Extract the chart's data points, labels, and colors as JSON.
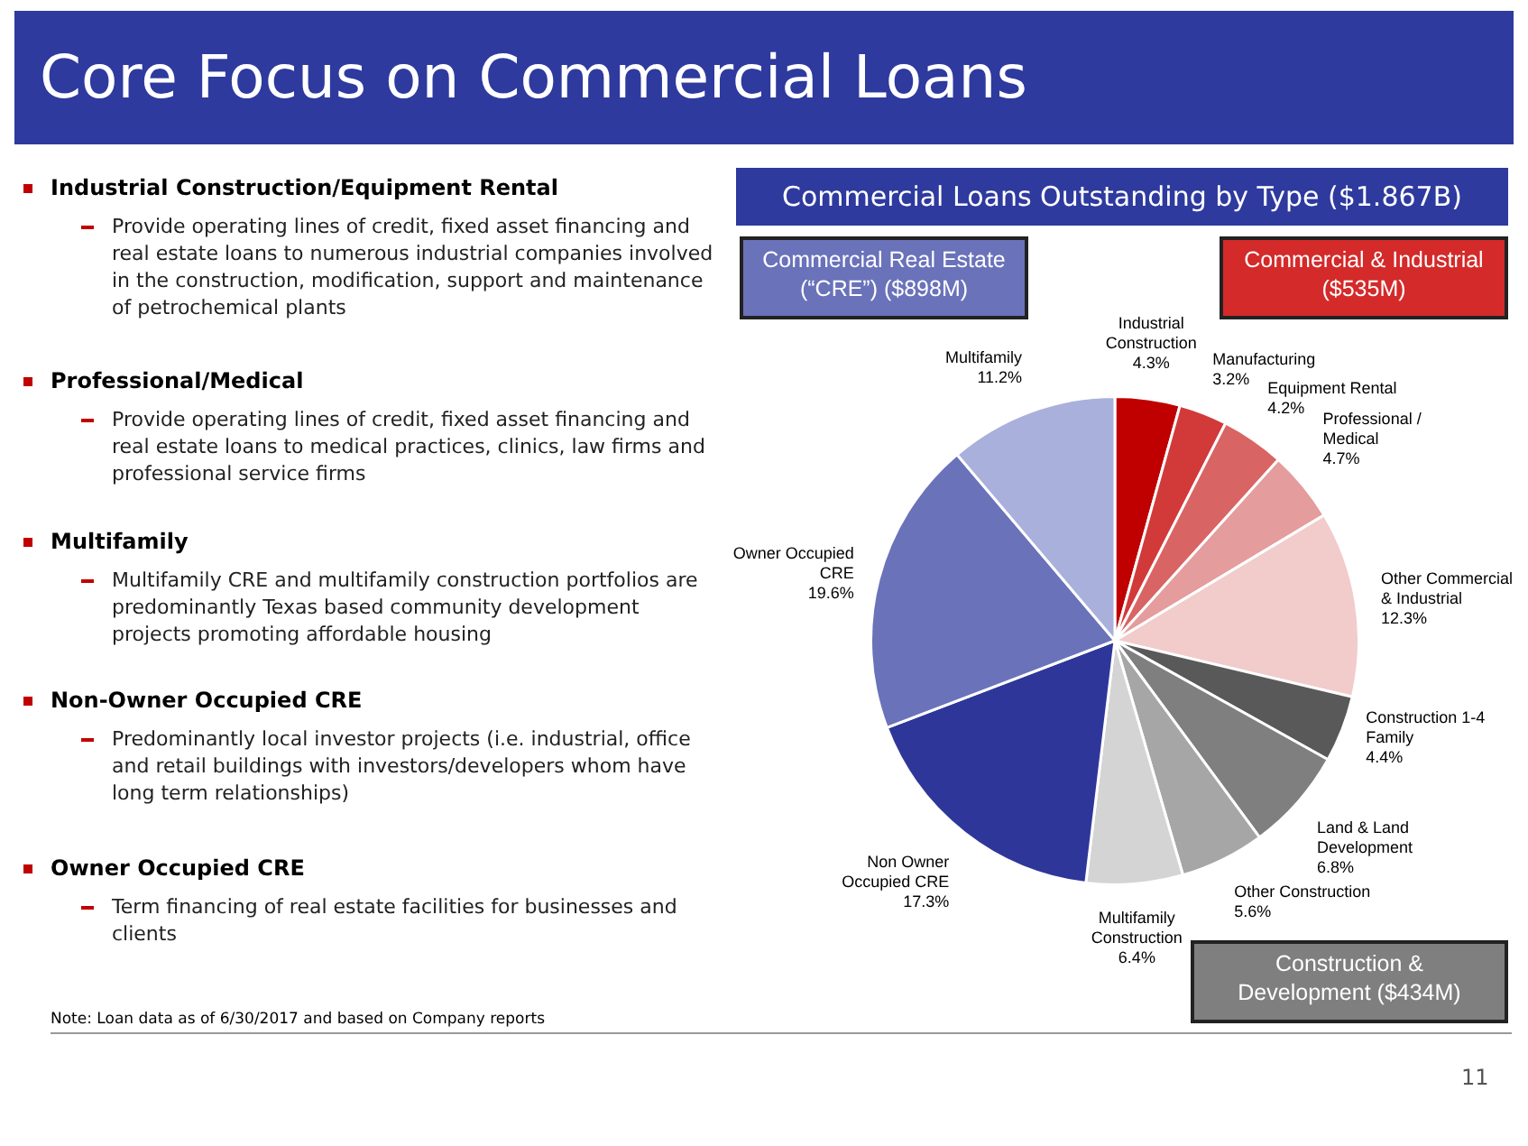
{
  "chart_data": {
    "type": "pie",
    "title": "Core Focus on Commercial Loans",
    "subtitle": "Commercial Loans Outstanding by Type ($1.867B)",
    "categories": [
      "Industrial\nConstruction",
      "Manufacturing",
      "Equipment Rental",
      "Professional /\nMedical",
      "Other Commercial\n& Industrial",
      "Construction 1-4\nFamily",
      "Land & Land\nDevelopment",
      "Other Construction",
      "Multifamily\nConstruction",
      "Non Owner\nOccupied CRE",
      "Owner Occupied\nCRE",
      "Multifamily"
    ],
    "values": [
      4.3,
      3.2,
      4.2,
      4.7,
      12.3,
      4.4,
      6.8,
      5.6,
      6.4,
      17.3,
      19.6,
      11.2
    ],
    "value_labels": [
      "4.3%",
      "3.2%",
      "4.2%",
      "4.7%",
      "12.3%",
      "4.4%",
      "6.8%",
      "5.6%",
      "6.4%",
      "17.3%",
      "19.6%",
      "11.2%"
    ],
    "colors": [
      "#c00000",
      "#d23a3a",
      "#d96464",
      "#e49c9c",
      "#f2cbcb",
      "#595959",
      "#7f7f7f",
      "#a6a6a6",
      "#d4d4d4",
      "#2e3799",
      "#6a72ba",
      "#aab0dc"
    ],
    "legend": false,
    "annotations": [
      "Commercial Real Estate\n(“CRE”) ($898M)",
      "Commercial & Industrial\n($535M)",
      "Construction &\nDevelopment ($434M)",
      "Industrial Construction/Equipment Rental",
      "Provide operating lines of credit, fixed asset financing and real estate loans to numerous industrial companies involved in the construction, modification, support and maintenance of petrochemical plants",
      "Professional/Medical",
      "Provide operating lines of credit, fixed asset financing and real estate loans to medical practices, clinics, law firms and professional service firms",
      "Multifamily",
      "Multifamily CRE and multifamily construction portfolios are predominantly Texas based community development projects promoting affordable housing",
      "Non-Owner Occupied CRE",
      "Predominantly local investor projects (i.e. industrial, office and retail buildings with investors/developers whom have long term relationships)",
      "Owner Occupied CRE",
      "Term financing of real estate facilities for businesses and clients",
      "Note: Loan data as of 6/30/2017 and based on Company reports",
      "11"
    ]
  }
}
